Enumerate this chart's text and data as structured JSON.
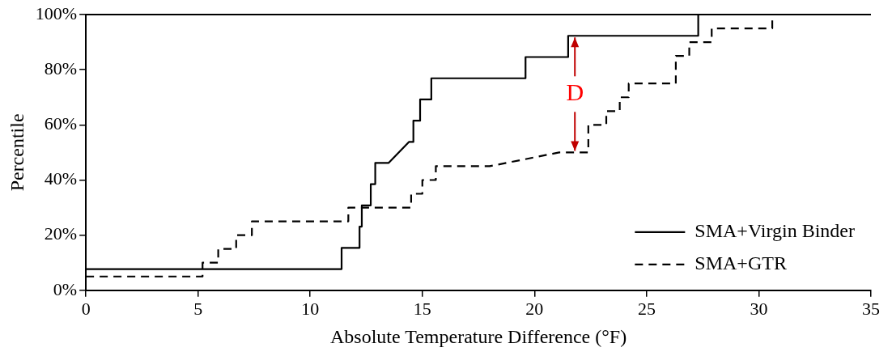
{
  "chart_data": {
    "type": "line",
    "xlabel": "Absolute Temperature Difference (°F)",
    "ylabel": "Percentile",
    "xlim": [
      0,
      35
    ],
    "xticks": [
      0,
      5,
      10,
      15,
      20,
      25,
      30,
      35
    ],
    "ylim": [
      0,
      100
    ],
    "yticks": [
      {
        "value": 0,
        "label": "0%"
      },
      {
        "value": 20,
        "label": "20%"
      },
      {
        "value": 40,
        "label": "40%"
      },
      {
        "value": 60,
        "label": "60%"
      },
      {
        "value": 80,
        "label": "80%"
      },
      {
        "value": 100,
        "label": "100%"
      }
    ],
    "grid": false,
    "legend": "bottom right",
    "marker": "none",
    "series": [
      {
        "name": "SMA+Virgin Binder",
        "color": "#000000",
        "line_style": "solid",
        "x": [
          0,
          11.4,
          11.4,
          12.2,
          12.2,
          12.3,
          12.3,
          12.7,
          12.7,
          12.9,
          12.9,
          13.5,
          14.4,
          14.6,
          14.6,
          14.9,
          14.9,
          15.4,
          15.4,
          19.6,
          19.6,
          21.5,
          21.5,
          27.3,
          27.3
        ],
        "values": [
          7.7,
          7.7,
          15.4,
          15.4,
          23.1,
          23.1,
          30.8,
          30.8,
          38.5,
          38.5,
          46.2,
          46.2,
          53.8,
          53.8,
          61.5,
          61.5,
          69.2,
          69.2,
          76.9,
          76.9,
          84.6,
          84.6,
          92.3,
          92.3,
          100
        ]
      },
      {
        "name": "SMA+GTR",
        "color": "#000000",
        "line_style": "dashed",
        "x": [
          0,
          5.2,
          5.2,
          5.9,
          5.9,
          6.7,
          6.7,
          7.4,
          7.4,
          11.7,
          11.7,
          14.5,
          14.5,
          15.0,
          15.0,
          15.6,
          15.6,
          18.0,
          21.1,
          22.4,
          22.4,
          23.2,
          23.2,
          23.8,
          23.8,
          24.2,
          24.2,
          26.3,
          26.3,
          26.9,
          26.9,
          27.9,
          27.9,
          30.6,
          30.6
        ],
        "values": [
          5,
          5,
          10,
          10,
          15,
          15,
          20,
          20,
          25,
          25,
          30,
          30,
          35,
          35,
          40,
          40,
          45,
          45,
          50,
          50,
          60,
          60,
          65,
          65,
          70,
          70,
          75,
          75,
          85,
          85,
          90,
          90,
          95,
          95,
          98
        ]
      }
    ],
    "annotations": [
      {
        "text": "D",
        "x": 21.8,
        "y": 92.3
      }
    ]
  }
}
